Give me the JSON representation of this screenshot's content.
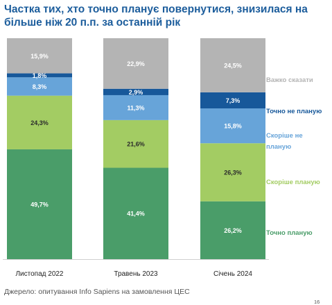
{
  "title": "Частка тих, хто точно планує повернутися, знизилася на більше ніж 20 п.п. за останній рік",
  "source": "Джерело: опитування Info Sapiens на замовлення ЦЕС",
  "page_number": "16",
  "chart_data": {
    "type": "bar",
    "stacked": true,
    "orientation": "vertical",
    "categories": [
      "Листопад 2022",
      "Травень 2023",
      "Січень 2024"
    ],
    "series": [
      {
        "name": "Точно планую",
        "values": [
          49.7,
          41.4,
          26.2
        ],
        "labels": [
          "49,7%",
          "41,4%",
          "26,2%"
        ],
        "color": "#4a9d69",
        "label_color": "#ffffff"
      },
      {
        "name": "Скоріше планую",
        "values": [
          24.3,
          21.6,
          26.3
        ],
        "labels": [
          "24,3%",
          "21,6%",
          "26,3%"
        ],
        "color": "#a3cc63",
        "label_color": "#2b2b2b"
      },
      {
        "name": "Скоріше не планую",
        "values": [
          8.3,
          11.3,
          15.8
        ],
        "labels": [
          "8,3%",
          "11,3%",
          "15,8%"
        ],
        "color": "#67a4d9",
        "label_color": "#ffffff"
      },
      {
        "name": "Точно не планую",
        "values": [
          1.8,
          2.9,
          7.3
        ],
        "labels": [
          "1,8%",
          "2,9%",
          "7,3%"
        ],
        "color": "#17589a",
        "label_color": "#ffffff"
      },
      {
        "name": "Важко сказати",
        "values": [
          15.9,
          22.9,
          24.5
        ],
        "labels": [
          "15,9%",
          "22,9%",
          "24,5%"
        ],
        "color": "#b4b4b4",
        "label_color": "#ffffff"
      }
    ],
    "legend_colors": [
      "#4a9d69",
      "#a3cc63",
      "#67a4d9",
      "#17589a",
      "#b4b4b4"
    ],
    "legend_placement": "right",
    "ylim": [
      0,
      100
    ],
    "grid": false
  }
}
